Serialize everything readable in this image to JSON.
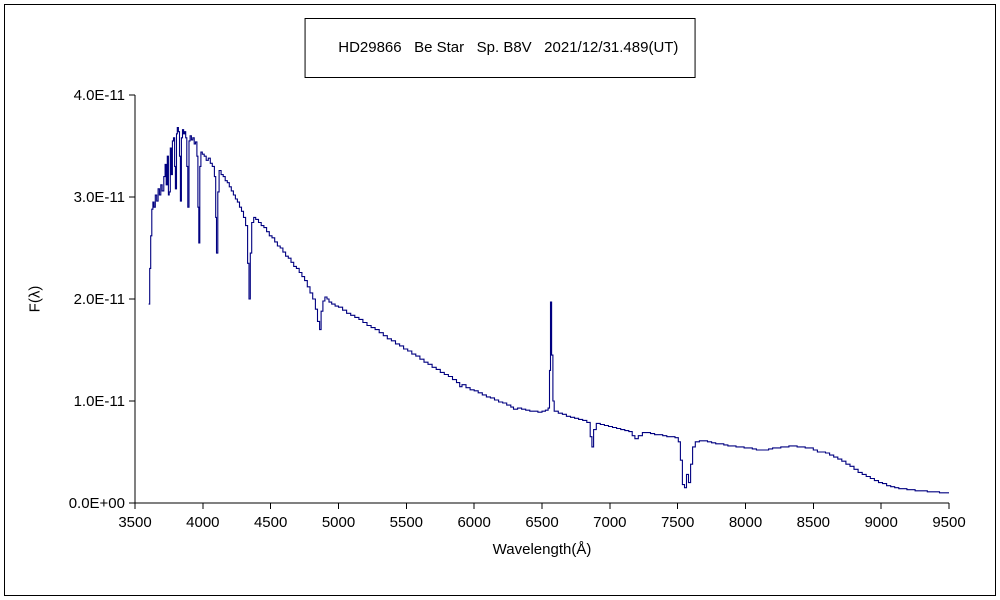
{
  "figure": {
    "title": "HD29866   Be Star   Sp. B8V   2021/12/31.489(UT)",
    "x_axis_label": "Wavelength(Å)",
    "y_axis_label": "F(λ)"
  },
  "chart_data": {
    "type": "line",
    "title": "HD29866 Be Star Sp. B8V 2021/12/31.489(UT)",
    "xlabel": "Wavelength(Å)",
    "ylabel": "F(λ)",
    "xlim": [
      3500,
      9500
    ],
    "ylim": [
      0,
      4e-11
    ],
    "y_scale": 1e-11,
    "grid": false,
    "legend": "none",
    "line_color": "#000080",
    "x_ticks": [
      3500,
      4000,
      4500,
      5000,
      5500,
      6000,
      6500,
      7000,
      7500,
      8000,
      8500,
      9000,
      9500
    ],
    "y_ticks": [
      {
        "value": 0,
        "label": "0.0E+00"
      },
      {
        "value": 1,
        "label": "1.0E-11"
      },
      {
        "value": 2,
        "label": "2.0E-11"
      },
      {
        "value": 3,
        "label": "3.0E-11"
      },
      {
        "value": 4,
        "label": "4.0E-11"
      }
    ],
    "points_note": "wavelength in Angstrom, flux in units of 1e-11",
    "points": [
      [
        3600,
        1.95
      ],
      [
        3608,
        2.3
      ],
      [
        3616,
        2.62
      ],
      [
        3624,
        2.88
      ],
      [
        3632,
        2.95
      ],
      [
        3640,
        2.9
      ],
      [
        3650,
        3.02
      ],
      [
        3660,
        2.96
      ],
      [
        3670,
        3.08
      ],
      [
        3680,
        3.02
      ],
      [
        3690,
        3.12
      ],
      [
        3700,
        3.06
      ],
      [
        3712,
        3.2
      ],
      [
        3722,
        3.32
      ],
      [
        3730,
        3.12
      ],
      [
        3738,
        3.4
      ],
      [
        3746,
        3.02
      ],
      [
        3752,
        3.05
      ],
      [
        3760,
        3.48
      ],
      [
        3768,
        3.22
      ],
      [
        3776,
        3.55
      ],
      [
        3784,
        3.58
      ],
      [
        3792,
        3.3
      ],
      [
        3798,
        3.08
      ],
      [
        3806,
        3.62
      ],
      [
        3812,
        3.68
      ],
      [
        3820,
        3.64
      ],
      [
        3828,
        3.4
      ],
      [
        3835,
        2.96
      ],
      [
        3842,
        3.58
      ],
      [
        3850,
        3.66
      ],
      [
        3858,
        3.62
      ],
      [
        3866,
        3.64
      ],
      [
        3874,
        3.58
      ],
      [
        3882,
        3.3
      ],
      [
        3889,
        2.9
      ],
      [
        3898,
        3.55
      ],
      [
        3906,
        3.6
      ],
      [
        3916,
        3.56
      ],
      [
        3926,
        3.58
      ],
      [
        3936,
        3.52
      ],
      [
        3946,
        3.54
      ],
      [
        3956,
        3.4
      ],
      [
        3964,
        2.9
      ],
      [
        3970,
        2.55
      ],
      [
        3978,
        3.3
      ],
      [
        3986,
        3.44
      ],
      [
        3996,
        3.42
      ],
      [
        4010,
        3.4
      ],
      [
        4025,
        3.36
      ],
      [
        4040,
        3.38
      ],
      [
        4055,
        3.33
      ],
      [
        4070,
        3.3
      ],
      [
        4085,
        3.2
      ],
      [
        4095,
        2.8
      ],
      [
        4101,
        2.45
      ],
      [
        4110,
        3.05
      ],
      [
        4120,
        3.26
      ],
      [
        4135,
        3.22
      ],
      [
        4150,
        3.2
      ],
      [
        4165,
        3.16
      ],
      [
        4180,
        3.14
      ],
      [
        4195,
        3.1
      ],
      [
        4210,
        3.06
      ],
      [
        4225,
        3.02
      ],
      [
        4240,
        2.98
      ],
      [
        4255,
        2.95
      ],
      [
        4270,
        2.9
      ],
      [
        4285,
        2.86
      ],
      [
        4300,
        2.8
      ],
      [
        4315,
        2.72
      ],
      [
        4330,
        2.35
      ],
      [
        4340,
        2.0
      ],
      [
        4350,
        2.45
      ],
      [
        4360,
        2.75
      ],
      [
        4375,
        2.8
      ],
      [
        4390,
        2.78
      ],
      [
        4410,
        2.75
      ],
      [
        4430,
        2.72
      ],
      [
        4450,
        2.7
      ],
      [
        4470,
        2.66
      ],
      [
        4490,
        2.62
      ],
      [
        4510,
        2.6
      ],
      [
        4530,
        2.56
      ],
      [
        4550,
        2.52
      ],
      [
        4570,
        2.5
      ],
      [
        4590,
        2.46
      ],
      [
        4610,
        2.42
      ],
      [
        4630,
        2.4
      ],
      [
        4650,
        2.36
      ],
      [
        4670,
        2.32
      ],
      [
        4690,
        2.3
      ],
      [
        4710,
        2.26
      ],
      [
        4730,
        2.22
      ],
      [
        4750,
        2.18
      ],
      [
        4770,
        2.12
      ],
      [
        4790,
        2.06
      ],
      [
        4810,
        2.0
      ],
      [
        4830,
        1.9
      ],
      [
        4845,
        1.78
      ],
      [
        4861,
        1.7
      ],
      [
        4872,
        1.88
      ],
      [
        4885,
        1.98
      ],
      [
        4900,
        2.02
      ],
      [
        4915,
        2.0
      ],
      [
        4930,
        1.97
      ],
      [
        4950,
        1.95
      ],
      [
        4975,
        1.93
      ],
      [
        5000,
        1.92
      ],
      [
        5030,
        1.89
      ],
      [
        5060,
        1.86
      ],
      [
        5090,
        1.84
      ],
      [
        5120,
        1.82
      ],
      [
        5150,
        1.8
      ],
      [
        5180,
        1.77
      ],
      [
        5210,
        1.74
      ],
      [
        5240,
        1.72
      ],
      [
        5270,
        1.7
      ],
      [
        5300,
        1.67
      ],
      [
        5330,
        1.64
      ],
      [
        5360,
        1.61
      ],
      [
        5390,
        1.59
      ],
      [
        5420,
        1.56
      ],
      [
        5450,
        1.54
      ],
      [
        5480,
        1.51
      ],
      [
        5510,
        1.49
      ],
      [
        5540,
        1.46
      ],
      [
        5570,
        1.44
      ],
      [
        5600,
        1.41
      ],
      [
        5630,
        1.38
      ],
      [
        5660,
        1.36
      ],
      [
        5690,
        1.33
      ],
      [
        5720,
        1.31
      ],
      [
        5750,
        1.28
      ],
      [
        5780,
        1.26
      ],
      [
        5810,
        1.24
      ],
      [
        5840,
        1.21
      ],
      [
        5870,
        1.18
      ],
      [
        5893,
        1.14
      ],
      [
        5910,
        1.16
      ],
      [
        5940,
        1.13
      ],
      [
        5970,
        1.11
      ],
      [
        6000,
        1.1
      ],
      [
        6030,
        1.08
      ],
      [
        6060,
        1.06
      ],
      [
        6090,
        1.04
      ],
      [
        6120,
        1.03
      ],
      [
        6150,
        1.01
      ],
      [
        6180,
        0.99
      ],
      [
        6210,
        0.98
      ],
      [
        6240,
        0.96
      ],
      [
        6270,
        0.94
      ],
      [
        6290,
        0.92
      ],
      [
        6320,
        0.93
      ],
      [
        6350,
        0.92
      ],
      [
        6380,
        0.91
      ],
      [
        6410,
        0.9
      ],
      [
        6440,
        0.9
      ],
      [
        6470,
        0.89
      ],
      [
        6500,
        0.9
      ],
      [
        6525,
        0.91
      ],
      [
        6545,
        0.93
      ],
      [
        6555,
        1.3
      ],
      [
        6563,
        1.97
      ],
      [
        6571,
        1.45
      ],
      [
        6580,
        1.0
      ],
      [
        6590,
        0.9
      ],
      [
        6620,
        0.88
      ],
      [
        6650,
        0.87
      ],
      [
        6680,
        0.85
      ],
      [
        6710,
        0.84
      ],
      [
        6740,
        0.83
      ],
      [
        6770,
        0.82
      ],
      [
        6800,
        0.81
      ],
      [
        6830,
        0.79
      ],
      [
        6855,
        0.65
      ],
      [
        6868,
        0.55
      ],
      [
        6880,
        0.72
      ],
      [
        6900,
        0.78
      ],
      [
        6930,
        0.77
      ],
      [
        6960,
        0.76
      ],
      [
        6990,
        0.75
      ],
      [
        7020,
        0.74
      ],
      [
        7050,
        0.73
      ],
      [
        7080,
        0.72
      ],
      [
        7110,
        0.71
      ],
      [
        7140,
        0.7
      ],
      [
        7165,
        0.66
      ],
      [
        7185,
        0.63
      ],
      [
        7210,
        0.66
      ],
      [
        7240,
        0.69
      ],
      [
        7270,
        0.69
      ],
      [
        7300,
        0.68
      ],
      [
        7330,
        0.67
      ],
      [
        7360,
        0.67
      ],
      [
        7390,
        0.66
      ],
      [
        7420,
        0.65
      ],
      [
        7450,
        0.65
      ],
      [
        7480,
        0.64
      ],
      [
        7505,
        0.6
      ],
      [
        7520,
        0.42
      ],
      [
        7535,
        0.18
      ],
      [
        7550,
        0.15
      ],
      [
        7565,
        0.28
      ],
      [
        7580,
        0.2
      ],
      [
        7595,
        0.38
      ],
      [
        7610,
        0.55
      ],
      [
        7630,
        0.6
      ],
      [
        7660,
        0.61
      ],
      [
        7690,
        0.61
      ],
      [
        7720,
        0.6
      ],
      [
        7750,
        0.59
      ],
      [
        7780,
        0.58
      ],
      [
        7810,
        0.58
      ],
      [
        7840,
        0.57
      ],
      [
        7870,
        0.56
      ],
      [
        7900,
        0.56
      ],
      [
        7930,
        0.55
      ],
      [
        7960,
        0.55
      ],
      [
        7990,
        0.54
      ],
      [
        8020,
        0.54
      ],
      [
        8050,
        0.53
      ],
      [
        8080,
        0.52
      ],
      [
        8110,
        0.52
      ],
      [
        8140,
        0.52
      ],
      [
        8170,
        0.53
      ],
      [
        8200,
        0.54
      ],
      [
        8230,
        0.54
      ],
      [
        8260,
        0.55
      ],
      [
        8290,
        0.55
      ],
      [
        8320,
        0.56
      ],
      [
        8350,
        0.56
      ],
      [
        8380,
        0.55
      ],
      [
        8410,
        0.55
      ],
      [
        8440,
        0.54
      ],
      [
        8470,
        0.54
      ],
      [
        8500,
        0.52
      ],
      [
        8530,
        0.5
      ],
      [
        8560,
        0.5
      ],
      [
        8590,
        0.49
      ],
      [
        8620,
        0.47
      ],
      [
        8650,
        0.45
      ],
      [
        8680,
        0.43
      ],
      [
        8710,
        0.41
      ],
      [
        8740,
        0.38
      ],
      [
        8770,
        0.36
      ],
      [
        8800,
        0.33
      ],
      [
        8830,
        0.3
      ],
      [
        8860,
        0.28
      ],
      [
        8890,
        0.26
      ],
      [
        8920,
        0.24
      ],
      [
        8950,
        0.22
      ],
      [
        8980,
        0.2
      ],
      [
        9010,
        0.19
      ],
      [
        9040,
        0.17
      ],
      [
        9070,
        0.16
      ],
      [
        9100,
        0.15
      ],
      [
        9130,
        0.14
      ],
      [
        9160,
        0.14
      ],
      [
        9190,
        0.13
      ],
      [
        9220,
        0.13
      ],
      [
        9250,
        0.12
      ],
      [
        9280,
        0.12
      ],
      [
        9310,
        0.12
      ],
      [
        9340,
        0.11
      ],
      [
        9370,
        0.11
      ],
      [
        9400,
        0.11
      ],
      [
        9430,
        0.1
      ],
      [
        9460,
        0.1
      ],
      [
        9500,
        0.1
      ]
    ]
  }
}
